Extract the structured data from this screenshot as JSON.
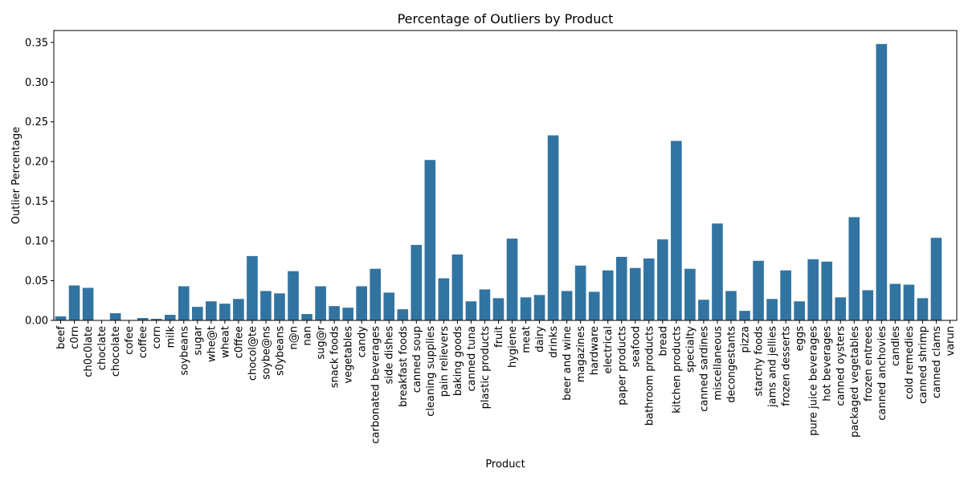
{
  "chart_data": {
    "type": "bar",
    "title": "Percentage of Outliers by Product",
    "xlabel": "Product",
    "ylabel": "Outlier Percentage",
    "ylim": [
      0,
      0.365
    ],
    "yticks": [
      "0.00",
      "0.05",
      "0.10",
      "0.15",
      "0.20",
      "0.25",
      "0.30",
      "0.35"
    ],
    "grid": false,
    "bar_color": "#3274a1",
    "categories": [
      "beef",
      "c0rn",
      "ch0c0late",
      "choclate",
      "chocolate",
      "cofee",
      "coffee",
      "corn",
      "milk",
      "soybeans",
      "sugar",
      "whe@t",
      "wheat",
      "c0ffee",
      "chocol@te",
      "soybe@ns",
      "s0ybeans",
      "n@n",
      "nan",
      "sug@r",
      "snack foods",
      "vegetables",
      "candy",
      "carbonated beverages",
      "side dishes",
      "breakfast foods",
      "canned soup",
      "cleaning supplies",
      "pain relievers",
      "baking goods",
      "canned tuna",
      "plastic products",
      "fruit",
      "hygiene",
      "meat",
      "dairy",
      "drinks",
      "beer and wine",
      "magazines",
      "hardware",
      "electrical",
      "paper products",
      "seafood",
      "bathroom products",
      "bread",
      "kitchen products",
      "specialty",
      "canned sardines",
      "miscellaneous",
      "decongestants",
      "pizza",
      "starchy foods",
      "jams and jellies",
      "frozen desserts",
      "eggs",
      "pure juice beverages",
      "hot beverages",
      "canned oysters",
      "packaged vegetables",
      "frozen entrees",
      "canned anchovies",
      "candles",
      "cold remedies",
      "canned shrimp",
      "canned clams",
      "varun"
    ],
    "values": [
      0.005,
      0.044,
      0.041,
      0.0,
      0.009,
      0.0,
      0.003,
      0.002,
      0.007,
      0.043,
      0.017,
      0.024,
      0.021,
      0.027,
      0.081,
      0.037,
      0.034,
      0.062,
      0.008,
      0.043,
      0.018,
      0.016,
      0.043,
      0.065,
      0.035,
      0.014,
      0.095,
      0.202,
      0.053,
      0.083,
      0.024,
      0.039,
      0.028,
      0.103,
      0.029,
      0.032,
      0.233,
      0.037,
      0.069,
      0.036,
      0.063,
      0.08,
      0.066,
      0.078,
      0.102,
      0.226,
      0.065,
      0.026,
      0.122,
      0.037,
      0.012,
      0.075,
      0.027,
      0.063,
      0.024,
      0.077,
      0.074,
      0.029,
      0.13,
      0.038,
      0.348,
      0.046,
      0.045,
      0.028,
      0.104,
      0.0
    ]
  }
}
